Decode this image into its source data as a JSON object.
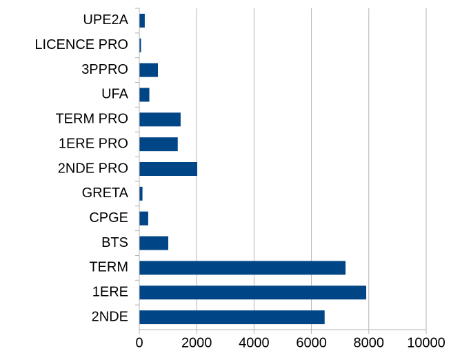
{
  "chart_data": {
    "type": "hbar",
    "categories": [
      "UPE2A",
      "LICENCE PRO",
      "3PPRO",
      "UFA",
      "TERM PRO",
      "1ERE PRO",
      "2NDE PRO",
      "GRETA",
      "CPGE",
      "BTS",
      "TERM",
      "1ERE",
      "2NDE"
    ],
    "values": [
      190,
      60,
      650,
      350,
      1440,
      1340,
      2020,
      110,
      310,
      1010,
      7190,
      7910,
      6460
    ],
    "color": "#004586",
    "xlim": [
      0,
      10000
    ],
    "xticks": [
      0,
      2000,
      4000,
      6000,
      8000,
      10000
    ],
    "grid": true
  }
}
